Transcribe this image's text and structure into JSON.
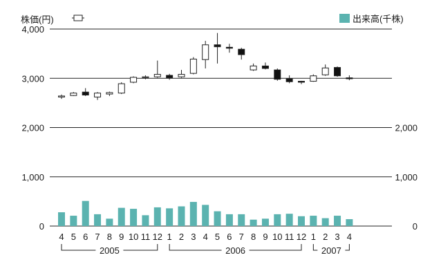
{
  "chart_data": {
    "type": "candlestick+bar",
    "title_left": "株価(円)",
    "title_right": "出来高(千株)",
    "y_left": {
      "min": 0,
      "max": 4000,
      "ticks": [
        0,
        1000,
        2000,
        3000,
        4000
      ],
      "tick_labels": [
        "0",
        "1,000",
        "2,000",
        "3,000",
        "4,000"
      ]
    },
    "y_right": {
      "min": 0,
      "max": 4000,
      "ticks": [
        0,
        1000,
        2000
      ],
      "tick_labels": [
        "0",
        "1,000",
        "2,000"
      ]
    },
    "months": [
      "4",
      "5",
      "6",
      "7",
      "8",
      "9",
      "10",
      "11",
      "12",
      "1",
      "2",
      "3",
      "4",
      "5",
      "6",
      "7",
      "8",
      "9",
      "10",
      "11",
      "12",
      "1",
      "2",
      "3",
      "4"
    ],
    "years": [
      {
        "label": "2005",
        "start": 0,
        "end": 8
      },
      {
        "label": "2006",
        "start": 9,
        "end": 20
      },
      {
        "label": "2007",
        "start": 21,
        "end": 24
      }
    ],
    "candles": [
      {
        "open": 2620,
        "close": 2640,
        "high": 2670,
        "low": 2580
      },
      {
        "open": 2650,
        "close": 2700,
        "high": 2720,
        "low": 2640
      },
      {
        "open": 2720,
        "close": 2660,
        "high": 2800,
        "low": 2640
      },
      {
        "open": 2620,
        "close": 2700,
        "high": 2720,
        "low": 2560
      },
      {
        "open": 2680,
        "close": 2710,
        "high": 2730,
        "low": 2640
      },
      {
        "open": 2700,
        "close": 2890,
        "high": 2920,
        "low": 2680
      },
      {
        "open": 2920,
        "close": 3020,
        "high": 3040,
        "low": 2900
      },
      {
        "open": 3020,
        "close": 3030,
        "high": 3060,
        "low": 2980
      },
      {
        "open": 3030,
        "close": 3080,
        "high": 3360,
        "low": 3010
      },
      {
        "open": 3060,
        "close": 3010,
        "high": 3090,
        "low": 2970
      },
      {
        "open": 3030,
        "close": 3080,
        "high": 3170,
        "low": 3010
      },
      {
        "open": 3100,
        "close": 3390,
        "high": 3430,
        "low": 3080
      },
      {
        "open": 3380,
        "close": 3680,
        "high": 3760,
        "low": 3200
      },
      {
        "open": 3680,
        "close": 3640,
        "high": 3920,
        "low": 3300
      },
      {
        "open": 3630,
        "close": 3610,
        "high": 3700,
        "low": 3520
      },
      {
        "open": 3590,
        "close": 3480,
        "high": 3620,
        "low": 3380
      },
      {
        "open": 3170,
        "close": 3250,
        "high": 3300,
        "low": 3150
      },
      {
        "open": 3250,
        "close": 3200,
        "high": 3320,
        "low": 3180
      },
      {
        "open": 3170,
        "close": 2980,
        "high": 3200,
        "low": 2950
      },
      {
        "open": 2990,
        "close": 2930,
        "high": 3060,
        "low": 2900
      },
      {
        "open": 2940,
        "close": 2920,
        "high": 2950,
        "low": 2880
      },
      {
        "open": 2940,
        "close": 3050,
        "high": 3080,
        "low": 2930
      },
      {
        "open": 3070,
        "close": 3210,
        "high": 3280,
        "low": 3050
      },
      {
        "open": 3220,
        "close": 3050,
        "high": 3240,
        "low": 3030
      },
      {
        "open": 3010,
        "close": 2990,
        "high": 3060,
        "low": 2960
      }
    ],
    "volume": [
      280,
      210,
      510,
      240,
      150,
      370,
      350,
      220,
      380,
      360,
      400,
      490,
      430,
      300,
      240,
      240,
      130,
      150,
      240,
      250,
      200,
      210,
      160,
      210,
      140
    ],
    "bar_color": "#5bb3b0",
    "candle_up_fill": "#ffffff",
    "candle_down_fill": "#111111",
    "grid": "horizontal"
  }
}
